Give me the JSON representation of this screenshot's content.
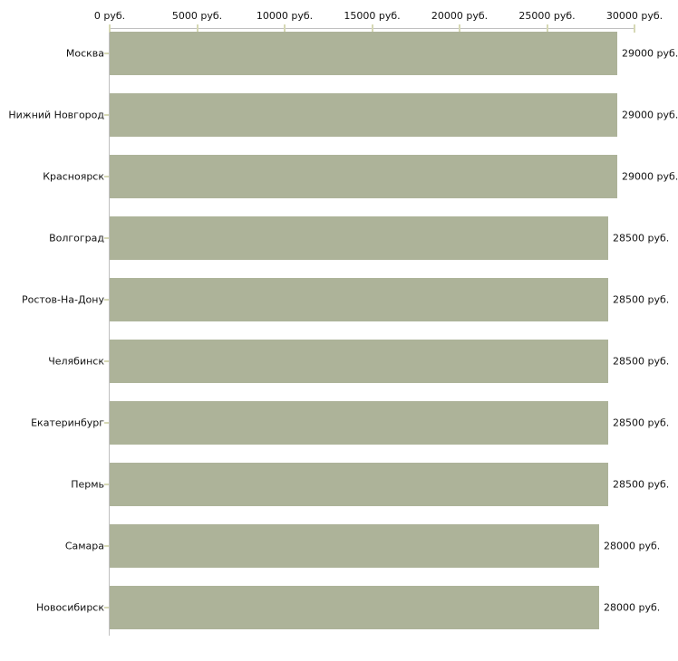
{
  "chart_data": {
    "type": "bar",
    "orientation": "horizontal",
    "title": "",
    "xlabel": "",
    "ylabel": "",
    "xlim": [
      0,
      30000
    ],
    "grid": false,
    "legend": false,
    "categories": [
      "Москва",
      "Нижний Новгород",
      "Красноярск",
      "Волгоград",
      "Ростов-На-Дону",
      "Челябинск",
      "Екатеринбург",
      "Пермь",
      "Самара",
      "Новосибирск"
    ],
    "values": [
      29000,
      29000,
      29000,
      28500,
      28500,
      28500,
      28500,
      28500,
      28000,
      28000
    ],
    "value_labels": [
      "29000 руб.",
      "29000 руб.",
      "29000 руб.",
      "28500 руб.",
      "28500 руб.",
      "28500 руб.",
      "28500 руб.",
      "28500 руб.",
      "28000 руб.",
      "28000 руб."
    ],
    "x_ticks": [
      {
        "label": "0 руб.",
        "value": 0
      },
      {
        "label": "5000 руб.",
        "value": 5000
      },
      {
        "label": "10000 руб.",
        "value": 10000
      },
      {
        "label": "15000 руб.",
        "value": 15000
      },
      {
        "label": "20000 руб.",
        "value": 20000
      },
      {
        "label": "25000 руб.",
        "value": 25000
      },
      {
        "label": "30000 руб.",
        "value": 30000
      }
    ],
    "colors": {
      "bar": "#adb399",
      "axis_line": "#c0c0c0",
      "tick_mark": "#d6d8b4",
      "text": "#111111"
    }
  }
}
